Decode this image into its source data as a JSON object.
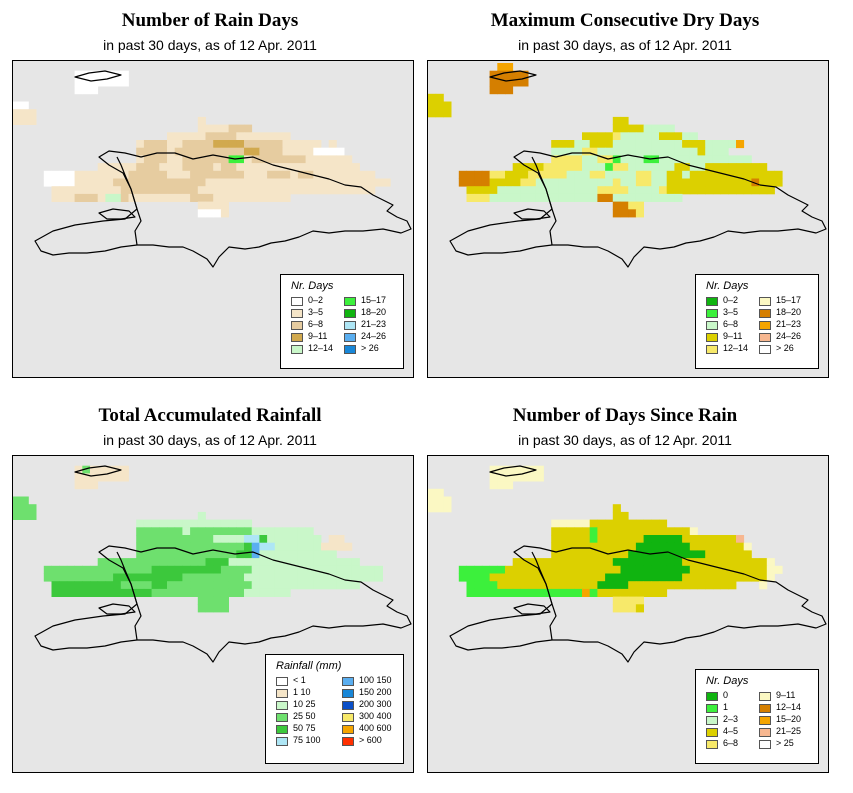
{
  "date": "12 Apr. 2011",
  "panels": [
    {
      "title": "Number of Rain Days",
      "subtitle": "in past 30 days, as of  12 Apr. 2011",
      "legend": {
        "title": "Nr. Days",
        "items": [
          {
            "label": "0–2",
            "color": "#ffffff"
          },
          {
            "label": "3–5",
            "color": "#f5e5c8"
          },
          {
            "label": "6–8",
            "color": "#e6cca0"
          },
          {
            "label": "9–11",
            "color": "#d1a94e"
          },
          {
            "label": "12–14",
            "color": "#c9f7c9"
          },
          {
            "label": "15–17",
            "color": "#3cf03c"
          },
          {
            "label": "18–20",
            "color": "#10b410"
          },
          {
            "label": "21–23",
            "color": "#aee6f5"
          },
          {
            "label": "24–26",
            "color": "#5aaef0"
          },
          {
            "label": "> 26",
            "color": "#1887d8"
          }
        ]
      },
      "map": {
        "palette": [
          "#ffffff",
          "#f5e5c8",
          "#e6cca0",
          "#d1a94e",
          "#c9f7c9",
          "#3cf03c"
        ],
        "rows": [
          "....................................................",
          "........0000000.....................................",
          "........0000000.....................................",
          "........000.........................................",
          "....................................................",
          "00..................................................",
          "111.................................................",
          "111.....................1...........................",
          "........................1111222.....................",
          "....................1111122221111111................",
          "................122211222233332222211111.1..........",
          "................222212222222223322211110000.........",
          "................1222112222225512222222111111........",
          "...........1111122211122221221111111111111111.......",
          "....0000111111122222111222222211122212211111111.....",
          "....000011111222222222222111111111111111111111111...",
          ".....111111111222222222211111111111111111111111.....",
          ".....1112221442111111112221111111111................",
          "........................1111........................",
          "........................0001........................",
          "....................................................",
          "...................................................."
        ]
      }
    },
    {
      "title": "Maximum Consecutive Dry Days",
      "subtitle": "in past 30 days, as of  12 Apr. 2011",
      "legend": {
        "title": "Nr. Days",
        "items": [
          {
            "label": "0–2",
            "color": "#10b410"
          },
          {
            "label": "3–5",
            "color": "#3cf03c"
          },
          {
            "label": "6–8",
            "color": "#c9f7c9"
          },
          {
            "label": "9–11",
            "color": "#dcd000"
          },
          {
            "label": "12–14",
            "color": "#f7e96a"
          },
          {
            "label": "15–17",
            "color": "#fbf8c3"
          },
          {
            "label": "18–20",
            "color": "#d57f00"
          },
          {
            "label": "21–23",
            "color": "#f5a500"
          },
          {
            "label": "24–26",
            "color": "#f7b790"
          },
          {
            "label": "> 26",
            "color": "#ffffff"
          }
        ]
      },
      "map": {
        "palette": [
          "#dcd000",
          "#f7e96a",
          "#c9f7c9",
          "#3cf03c",
          "#d57f00",
          "#f5a500",
          "#f7b790",
          "#10b410"
        ],
        "rows": [
          ".........55.........................................",
          "........44444.......................................",
          "........44444.......................................",
          "........444.........................................",
          "00..................................................",
          "000.................................................",
          "000.................................................",
          "........................00..........................",
          "........................00002222....................",
          "....................000012222200022.................",
          "................0002200022222222200022225...........",
          "................22221122222222222220222.............",
          "................11112211322233222222222222..........",
          "...........000011111222311222222002200000000........",
          "....444411000111112221122221122002000000000000......",
          "....444400001122222222221221122000000000004000......",
          ".....0000222222222222211112222100000000000000.......",
          ".....1112222222222222244222222222...................",
          "........................4411........................",
          "........................4441........................",
          "........................................................",
          "...................................................."
        ]
      }
    },
    {
      "title": "Total Accumulated Rainfall",
      "subtitle": "in past 30 days, as of  12 Apr. 2011",
      "legend": {
        "title": "Rainfall (mm)",
        "items": [
          {
            "label": "< 1",
            "color": "#ffffff"
          },
          {
            "label": "1    10",
            "color": "#f5e5c8"
          },
          {
            "label": "10    25",
            "color": "#c9f7c9"
          },
          {
            "label": "25    50",
            "color": "#6ee06e"
          },
          {
            "label": "50    75",
            "color": "#3cc83c"
          },
          {
            "label": "75  100",
            "color": "#aee6f5"
          },
          {
            "label": "100  150",
            "color": "#5aaef0"
          },
          {
            "label": "150  200",
            "color": "#1887d8"
          },
          {
            "label": "200  300",
            "color": "#0a4fc8"
          },
          {
            "label": "300  400",
            "color": "#f7e96a"
          },
          {
            "label": "400  600",
            "color": "#f5a500"
          },
          {
            "label": "> 600",
            "color": "#ff3000"
          }
        ]
      },
      "map": {
        "palette": [
          "#f5e5c8",
          "#c9f7c9",
          "#6ee06e",
          "#3cc83c",
          "#aee6f5",
          "#5aaef0",
          "#f0f0d8"
        ],
        "rows": [
          "....................................................",
          "........0200000.....................................",
          "........0000000.....................................",
          "........000.........................................",
          "..................................................",
          "22..................................................",
          "222.................................................",
          "222.....................1...........................",
          "................111111111111111.....................",
          "................22222212222222211111111.............",
          "................222222222211114431111111.00.........",
          "................2222222222222235441111110000........",
          "................22222222222223351111111111..........",
          "...........2222222222222233311111111111111111.......",
          "....22222222222222333333333222211111111111111111....",
          "....22222222233333333322222222111111111111111111....",
          ".....3333333332222332222222222211111111111111.......",
          ".....3333333333333222222222222111111................",
          "........................2222........................",
          "........................2222........................",
          "....................................................",
          "...................................................."
        ]
      }
    },
    {
      "title": "Number of Days Since Rain",
      "subtitle": "in past 30 days, as of  12 Apr. 2011",
      "legend": {
        "title": "Nr. Days",
        "items": [
          {
            "label": "0",
            "color": "#10b410"
          },
          {
            "label": "1",
            "color": "#3cf03c"
          },
          {
            "label": "2–3",
            "color": "#c9f7c9"
          },
          {
            "label": "4–5",
            "color": "#dcd000"
          },
          {
            "label": "6–8",
            "color": "#f7e96a"
          },
          {
            "label": "9–11",
            "color": "#fbf8c3"
          },
          {
            "label": "12–14",
            "color": "#d57f00"
          },
          {
            "label": "15–20",
            "color": "#f5a500"
          },
          {
            "label": "21–25",
            "color": "#f7b790"
          },
          {
            "label": "> 25",
            "color": "#ffffff"
          }
        ]
      },
      "map": {
        "palette": [
          "#10b410",
          "#3cf03c",
          "#c9f7c9",
          "#dcd000",
          "#f7e96a",
          "#fbf8c3",
          "#f5a500",
          "#f7b790"
        ],
        "rows": [
          "....................................................",
          "........5555555.....................................",
          "........5555555.....................................",
          "........555.........................................",
          "55..................................................",
          "555.................................................",
          "555.....................3...........................",
          "........................33..........................",
          "................555553333333333.....................",
          "................3333313333333333335.................",
          "................3333313333330000033333337...........",
          "................33333333333000000033333335..........",
          "................33333333330000000000333333..........",
          "...........3333333333333000000000333333333335.......",
          "....111111333333333333333000000000333333333355......",
          "....11113333333333333330000000000333333333335.......",
          ".....11113333333333333000033333333333333...5........",
          ".....11111111111111161333333333.....................",
          "........................4444........................",
          "........................4443........................",
          "....................................................",
          "...................................................."
        ]
      }
    }
  ]
}
